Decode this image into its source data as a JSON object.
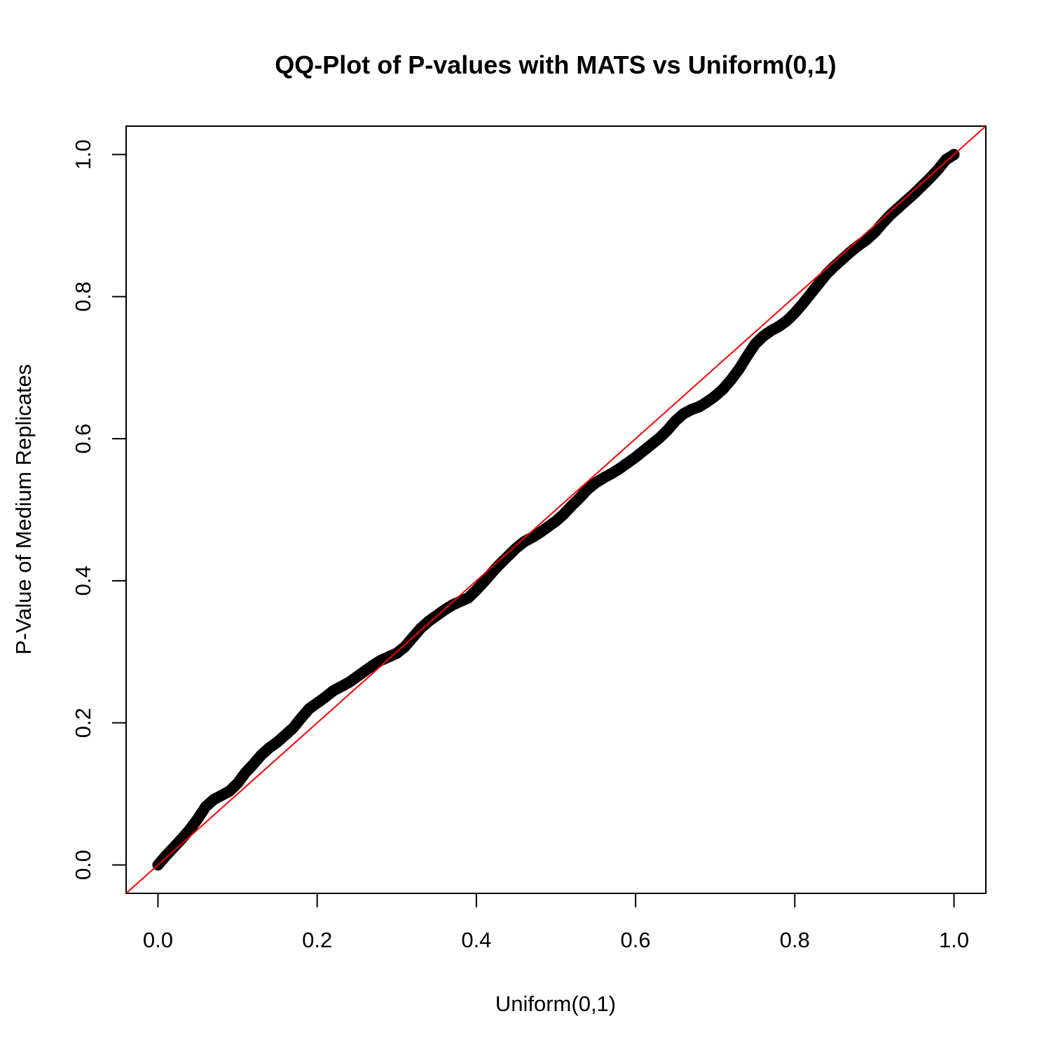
{
  "chart_data": {
    "type": "scatter",
    "title": "QQ-Plot of P-values with MATS vs Uniform(0,1)",
    "xlabel": "Uniform(0,1)",
    "ylabel": "P-Value of Medium Replicates",
    "xlim": [
      -0.04,
      1.04
    ],
    "ylim": [
      -0.04,
      1.04
    ],
    "x_ticks": [
      0.0,
      0.2,
      0.4,
      0.6,
      0.8,
      1.0
    ],
    "y_ticks": [
      0.0,
      0.2,
      0.4,
      0.6,
      0.8,
      1.0
    ],
    "x_tick_labels": [
      "0.0",
      "0.2",
      "0.4",
      "0.6",
      "0.8",
      "1.0"
    ],
    "y_tick_labels": [
      "0.0",
      "0.2",
      "0.4",
      "0.6",
      "0.8",
      "1.0"
    ],
    "grid": false,
    "reference_line": {
      "intercept": 0,
      "slope": 1,
      "color": "#ff0000"
    },
    "point_color": "#000000",
    "series": [
      {
        "name": "P-Value of Medium Replicates",
        "points": [
          [
            0.0,
            0.0
          ],
          [
            0.01,
            0.013
          ],
          [
            0.02,
            0.025
          ],
          [
            0.03,
            0.037
          ],
          [
            0.04,
            0.05
          ],
          [
            0.05,
            0.065
          ],
          [
            0.06,
            0.082
          ],
          [
            0.07,
            0.092
          ],
          [
            0.08,
            0.098
          ],
          [
            0.09,
            0.104
          ],
          [
            0.1,
            0.115
          ],
          [
            0.11,
            0.13
          ],
          [
            0.12,
            0.142
          ],
          [
            0.13,
            0.155
          ],
          [
            0.14,
            0.165
          ],
          [
            0.15,
            0.173
          ],
          [
            0.16,
            0.183
          ],
          [
            0.17,
            0.193
          ],
          [
            0.18,
            0.207
          ],
          [
            0.19,
            0.22
          ],
          [
            0.2,
            0.228
          ],
          [
            0.21,
            0.236
          ],
          [
            0.22,
            0.245
          ],
          [
            0.23,
            0.251
          ],
          [
            0.24,
            0.257
          ],
          [
            0.25,
            0.265
          ],
          [
            0.26,
            0.273
          ],
          [
            0.27,
            0.281
          ],
          [
            0.28,
            0.288
          ],
          [
            0.29,
            0.293
          ],
          [
            0.3,
            0.298
          ],
          [
            0.31,
            0.307
          ],
          [
            0.32,
            0.32
          ],
          [
            0.33,
            0.333
          ],
          [
            0.34,
            0.343
          ],
          [
            0.35,
            0.351
          ],
          [
            0.36,
            0.359
          ],
          [
            0.37,
            0.366
          ],
          [
            0.38,
            0.371
          ],
          [
            0.39,
            0.376
          ],
          [
            0.4,
            0.387
          ],
          [
            0.41,
            0.399
          ],
          [
            0.42,
            0.412
          ],
          [
            0.43,
            0.424
          ],
          [
            0.44,
            0.435
          ],
          [
            0.45,
            0.446
          ],
          [
            0.46,
            0.455
          ],
          [
            0.47,
            0.461
          ],
          [
            0.48,
            0.468
          ],
          [
            0.49,
            0.476
          ],
          [
            0.5,
            0.484
          ],
          [
            0.51,
            0.494
          ],
          [
            0.52,
            0.506
          ],
          [
            0.53,
            0.517
          ],
          [
            0.54,
            0.529
          ],
          [
            0.55,
            0.538
          ],
          [
            0.56,
            0.545
          ],
          [
            0.57,
            0.551
          ],
          [
            0.58,
            0.558
          ],
          [
            0.59,
            0.566
          ],
          [
            0.6,
            0.574
          ],
          [
            0.61,
            0.583
          ],
          [
            0.62,
            0.592
          ],
          [
            0.63,
            0.601
          ],
          [
            0.64,
            0.612
          ],
          [
            0.65,
            0.625
          ],
          [
            0.66,
            0.635
          ],
          [
            0.67,
            0.641
          ],
          [
            0.68,
            0.645
          ],
          [
            0.69,
            0.652
          ],
          [
            0.7,
            0.66
          ],
          [
            0.71,
            0.67
          ],
          [
            0.72,
            0.683
          ],
          [
            0.73,
            0.698
          ],
          [
            0.74,
            0.716
          ],
          [
            0.75,
            0.733
          ],
          [
            0.76,
            0.744
          ],
          [
            0.77,
            0.752
          ],
          [
            0.78,
            0.758
          ],
          [
            0.79,
            0.766
          ],
          [
            0.8,
            0.777
          ],
          [
            0.81,
            0.79
          ],
          [
            0.82,
            0.804
          ],
          [
            0.83,
            0.818
          ],
          [
            0.84,
            0.832
          ],
          [
            0.85,
            0.843
          ],
          [
            0.86,
            0.853
          ],
          [
            0.87,
            0.863
          ],
          [
            0.88,
            0.872
          ],
          [
            0.89,
            0.88
          ],
          [
            0.9,
            0.89
          ],
          [
            0.91,
            0.903
          ],
          [
            0.92,
            0.915
          ],
          [
            0.93,
            0.925
          ],
          [
            0.94,
            0.935
          ],
          [
            0.95,
            0.945
          ],
          [
            0.96,
            0.956
          ],
          [
            0.97,
            0.967
          ],
          [
            0.98,
            0.979
          ],
          [
            0.99,
            0.993
          ],
          [
            1.0,
            1.0
          ]
        ]
      }
    ]
  }
}
